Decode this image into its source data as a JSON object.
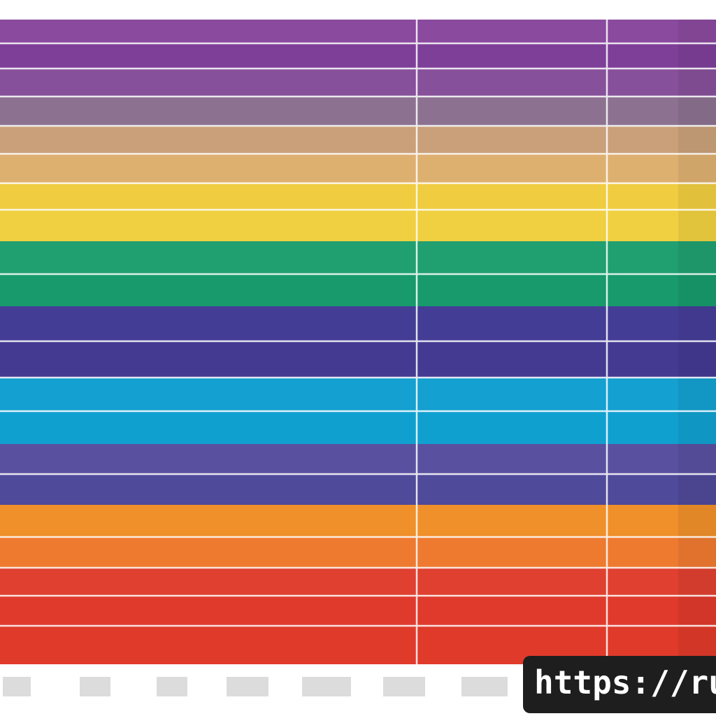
{
  "watermark": {
    "text": "https://ru-"
  }
}
